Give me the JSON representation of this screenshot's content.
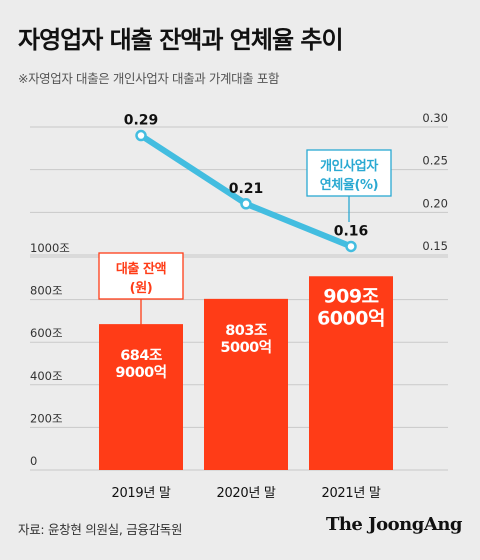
{
  "title": "자영업자 대출 잔액과 연체율 추이",
  "subtitle": "※자영업자 대출은 개인사업자 대출과 가계대출 포함",
  "source": "자료: 윤창현 의원실, 금융감독원",
  "brand": "The JoongAng",
  "colors": {
    "bar": "#ff3c17",
    "line": "#43bde0",
    "line_marker_fill": "#ffffff",
    "grid": "#c9c9c9",
    "axis_text": "#333333",
    "bar_label": "#ffffff",
    "background": "#ececec"
  },
  "chart_data": {
    "type": "bar",
    "categories": [
      "2019년 말",
      "2020년 말",
      "2021년 말"
    ],
    "series": [
      {
        "name": "대출 잔액\n(원)",
        "type": "bar",
        "axis": "left",
        "values": [
          684.9,
          803.5,
          909.6
        ],
        "data_labels": [
          "684조\n9000억",
          "803조\n5000억",
          "909조\n6000억"
        ]
      },
      {
        "name": "개인사업자\n연체율(%)",
        "type": "line",
        "axis": "right",
        "values": [
          0.29,
          0.21,
          0.16
        ],
        "data_labels": [
          "0.29",
          "0.21",
          "0.16"
        ]
      }
    ],
    "left_axis": {
      "ylim": [
        0,
        1000
      ],
      "ticks": [
        0,
        200,
        400,
        600,
        800,
        1000
      ],
      "tick_labels": [
        "0",
        "200조",
        "400조",
        "600조",
        "800조",
        "1000조"
      ]
    },
    "right_axis": {
      "ylim": [
        0.15,
        0.3
      ],
      "ticks": [
        0.15,
        0.2,
        0.25,
        0.3
      ],
      "tick_labels": [
        "0.15",
        "0.20",
        "0.25",
        "0.30"
      ]
    },
    "grid": true
  }
}
